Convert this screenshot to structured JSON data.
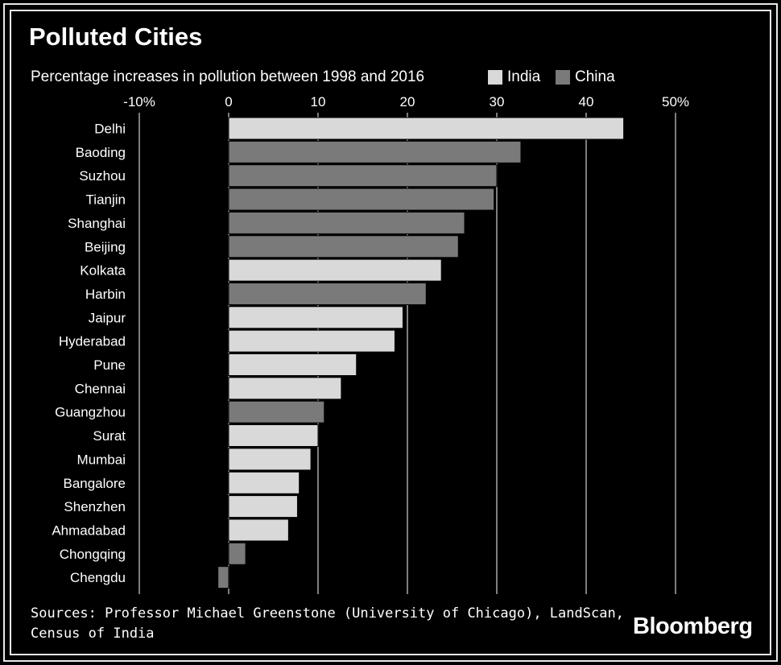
{
  "title": "Polluted Cities",
  "subtitle": "Percentage increases in pollution between 1998 and 2016",
  "legend": [
    {
      "name": "India",
      "color": "#d9d9d9"
    },
    {
      "name": "China",
      "color": "#7a7a7a"
    }
  ],
  "source": "Sources: Professor Michael Greenstone (University of Chicago), LandScan, Census of India",
  "brand": "Bloomberg",
  "chart_data": {
    "type": "bar",
    "orientation": "horizontal",
    "xlim": [
      -10,
      50
    ],
    "ticks": [
      {
        "value": -10,
        "label": "-10%"
      },
      {
        "value": 0,
        "label": "0"
      },
      {
        "value": 10,
        "label": "10"
      },
      {
        "value": 20,
        "label": "20"
      },
      {
        "value": 30,
        "label": "30"
      },
      {
        "value": 40,
        "label": "40"
      },
      {
        "value": 50,
        "label": "50%"
      }
    ],
    "grid": true,
    "bars": [
      {
        "city": "Delhi",
        "value": 44.2,
        "country": "India"
      },
      {
        "city": "Baoding",
        "value": 32.7,
        "country": "China"
      },
      {
        "city": "Suzhou",
        "value": 30.0,
        "country": "China"
      },
      {
        "city": "Tianjin",
        "value": 29.7,
        "country": "China"
      },
      {
        "city": "Shanghai",
        "value": 26.4,
        "country": "China"
      },
      {
        "city": "Beijing",
        "value": 25.7,
        "country": "China"
      },
      {
        "city": "Kolkata",
        "value": 23.8,
        "country": "India"
      },
      {
        "city": "Harbin",
        "value": 22.1,
        "country": "China"
      },
      {
        "city": "Jaipur",
        "value": 19.5,
        "country": "India"
      },
      {
        "city": "Hyderabad",
        "value": 18.6,
        "country": "India"
      },
      {
        "city": "Pune",
        "value": 14.3,
        "country": "India"
      },
      {
        "city": "Chennai",
        "value": 12.6,
        "country": "India"
      },
      {
        "city": "Guangzhou",
        "value": 10.7,
        "country": "China"
      },
      {
        "city": "Surat",
        "value": 10.0,
        "country": "India"
      },
      {
        "city": "Mumbai",
        "value": 9.2,
        "country": "India"
      },
      {
        "city": "Bangalore",
        "value": 7.9,
        "country": "India"
      },
      {
        "city": "Shenzhen",
        "value": 7.7,
        "country": "India"
      },
      {
        "city": "Ahmadabad",
        "value": 6.7,
        "country": "India"
      },
      {
        "city": "Chongqing",
        "value": 1.9,
        "country": "China"
      },
      {
        "city": "Chengdu",
        "value": -1.2,
        "country": "China"
      }
    ]
  }
}
